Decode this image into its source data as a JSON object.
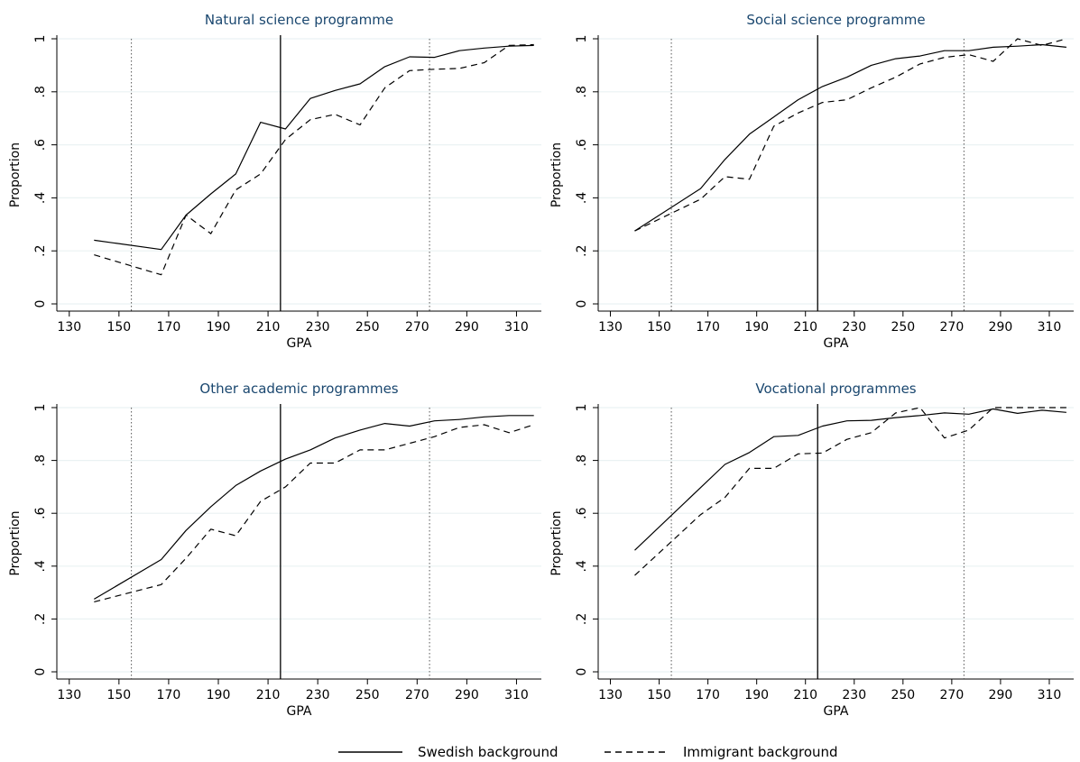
{
  "legend": {
    "swedish_label": "Swedish background",
    "immigrant_label": "Immigrant background"
  },
  "colors": {
    "title": "#1a476f",
    "line": "#000000",
    "grid": "#eaf2f3",
    "axis": "#000000"
  },
  "chart_data": [
    {
      "type": "line",
      "title": "Natural science programme",
      "xlabel": "GPA",
      "ylabel": "Proportion",
      "xlim": [
        125,
        320
      ],
      "ylim": [
        0,
        1
      ],
      "xticks": [
        130,
        150,
        170,
        190,
        210,
        230,
        250,
        270,
        290,
        310
      ],
      "yticks": [
        0,
        0.2,
        0.4,
        0.6,
        0.8,
        1
      ],
      "ytick_labels": [
        "0",
        ".2",
        ".4",
        ".6",
        ".8",
        "1"
      ],
      "grid": true,
      "vlines": {
        "solid": [
          215
        ],
        "dotted": [
          155,
          275
        ]
      },
      "series": [
        {
          "name": "Swedish background",
          "style": "solid",
          "points": [
            [
              140,
              0.24
            ],
            [
              167,
              0.205
            ],
            [
              177,
              0.335
            ],
            [
              187,
              0.415
            ],
            [
              197,
              0.49
            ],
            [
              207,
              0.685
            ],
            [
              217,
              0.66
            ],
            [
              227,
              0.775
            ],
            [
              237,
              0.805
            ],
            [
              247,
              0.83
            ],
            [
              257,
              0.895
            ],
            [
              267,
              0.932
            ],
            [
              277,
              0.93
            ],
            [
              287,
              0.955
            ],
            [
              297,
              0.965
            ],
            [
              307,
              0.972
            ],
            [
              317,
              0.975
            ]
          ]
        },
        {
          "name": "Immigrant background",
          "style": "dashed",
          "points": [
            [
              140,
              0.185
            ],
            [
              167,
              0.11
            ],
            [
              177,
              0.335
            ],
            [
              187,
              0.265
            ],
            [
              197,
              0.43
            ],
            [
              207,
              0.49
            ],
            [
              217,
              0.62
            ],
            [
              227,
              0.695
            ],
            [
              237,
              0.715
            ],
            [
              247,
              0.675
            ],
            [
              257,
              0.815
            ],
            [
              267,
              0.88
            ],
            [
              277,
              0.885
            ],
            [
              287,
              0.888
            ],
            [
              297,
              0.91
            ],
            [
              307,
              0.975
            ],
            [
              317,
              0.978
            ]
          ]
        }
      ]
    },
    {
      "type": "line",
      "title": "Social science programme",
      "xlabel": "GPA",
      "ylabel": "Proportion",
      "xlim": [
        125,
        320
      ],
      "ylim": [
        0,
        1
      ],
      "xticks": [
        130,
        150,
        170,
        190,
        210,
        230,
        250,
        270,
        290,
        310
      ],
      "yticks": [
        0,
        0.2,
        0.4,
        0.6,
        0.8,
        1
      ],
      "ytick_labels": [
        "0",
        ".2",
        ".4",
        ".6",
        ".8",
        "1"
      ],
      "grid": true,
      "vlines": {
        "solid": [
          215
        ],
        "dotted": [
          155,
          275
        ]
      },
      "series": [
        {
          "name": "Swedish background",
          "style": "solid",
          "points": [
            [
              140,
              0.275
            ],
            [
              167,
              0.435
            ],
            [
              177,
              0.545
            ],
            [
              187,
              0.64
            ],
            [
              197,
              0.705
            ],
            [
              207,
              0.77
            ],
            [
              217,
              0.82
            ],
            [
              227,
              0.855
            ],
            [
              237,
              0.9
            ],
            [
              247,
              0.925
            ],
            [
              257,
              0.935
            ],
            [
              267,
              0.955
            ],
            [
              277,
              0.955
            ],
            [
              287,
              0.968
            ],
            [
              297,
              0.972
            ],
            [
              307,
              0.978
            ],
            [
              317,
              0.968
            ]
          ]
        },
        {
          "name": "Immigrant background",
          "style": "dashed",
          "points": [
            [
              140,
              0.275
            ],
            [
              167,
              0.395
            ],
            [
              177,
              0.48
            ],
            [
              187,
              0.47
            ],
            [
              197,
              0.67
            ],
            [
              207,
              0.72
            ],
            [
              217,
              0.76
            ],
            [
              227,
              0.77
            ],
            [
              237,
              0.815
            ],
            [
              247,
              0.855
            ],
            [
              257,
              0.905
            ],
            [
              267,
              0.93
            ],
            [
              277,
              0.94
            ],
            [
              287,
              0.915
            ],
            [
              297,
              1.0
            ],
            [
              307,
              0.975
            ],
            [
              317,
              1.0
            ]
          ]
        }
      ]
    },
    {
      "type": "line",
      "title": "Other academic programmes",
      "xlabel": "GPA",
      "ylabel": "Proportion",
      "xlim": [
        125,
        320
      ],
      "ylim": [
        0,
        1
      ],
      "xticks": [
        130,
        150,
        170,
        190,
        210,
        230,
        250,
        270,
        290,
        310
      ],
      "yticks": [
        0,
        0.2,
        0.4,
        0.6,
        0.8,
        1
      ],
      "ytick_labels": [
        "0",
        ".2",
        ".4",
        ".6",
        ".8",
        "1"
      ],
      "grid": true,
      "vlines": {
        "solid": [
          215
        ],
        "dotted": [
          155,
          275
        ]
      },
      "series": [
        {
          "name": "Swedish background",
          "style": "solid",
          "points": [
            [
              140,
              0.275
            ],
            [
              167,
              0.425
            ],
            [
              177,
              0.535
            ],
            [
              187,
              0.625
            ],
            [
              197,
              0.705
            ],
            [
              207,
              0.76
            ],
            [
              217,
              0.805
            ],
            [
              227,
              0.84
            ],
            [
              237,
              0.885
            ],
            [
              247,
              0.915
            ],
            [
              257,
              0.94
            ],
            [
              267,
              0.93
            ],
            [
              277,
              0.95
            ],
            [
              287,
              0.955
            ],
            [
              297,
              0.965
            ],
            [
              307,
              0.97
            ],
            [
              317,
              0.97
            ]
          ]
        },
        {
          "name": "Immigrant background",
          "style": "dashed",
          "points": [
            [
              140,
              0.265
            ],
            [
              167,
              0.33
            ],
            [
              177,
              0.43
            ],
            [
              187,
              0.54
            ],
            [
              197,
              0.515
            ],
            [
              207,
              0.645
            ],
            [
              217,
              0.7
            ],
            [
              227,
              0.79
            ],
            [
              237,
              0.79
            ],
            [
              247,
              0.84
            ],
            [
              257,
              0.84
            ],
            [
              267,
              0.865
            ],
            [
              277,
              0.89
            ],
            [
              287,
              0.925
            ],
            [
              297,
              0.935
            ],
            [
              307,
              0.905
            ],
            [
              317,
              0.935
            ]
          ]
        }
      ]
    },
    {
      "type": "line",
      "title": "Vocational programmes",
      "xlabel": "GPA",
      "ylabel": "Proportion",
      "xlim": [
        125,
        320
      ],
      "ylim": [
        0,
        1
      ],
      "xticks": [
        130,
        150,
        170,
        190,
        210,
        230,
        250,
        270,
        290,
        310
      ],
      "yticks": [
        0,
        0.2,
        0.4,
        0.6,
        0.8,
        1
      ],
      "ytick_labels": [
        "0",
        ".2",
        ".4",
        ".6",
        ".8",
        "1"
      ],
      "grid": true,
      "vlines": {
        "solid": [
          215
        ],
        "dotted": [
          155,
          275
        ]
      },
      "series": [
        {
          "name": "Swedish background",
          "style": "solid",
          "points": [
            [
              140,
              0.46
            ],
            [
              177,
              0.785
            ],
            [
              187,
              0.83
            ],
            [
              197,
              0.89
            ],
            [
              207,
              0.895
            ],
            [
              217,
              0.93
            ],
            [
              227,
              0.95
            ],
            [
              237,
              0.952
            ],
            [
              247,
              0.962
            ],
            [
              257,
              0.97
            ],
            [
              267,
              0.98
            ],
            [
              277,
              0.975
            ],
            [
              287,
              0.995
            ],
            [
              297,
              0.978
            ],
            [
              307,
              0.99
            ],
            [
              317,
              0.982
            ]
          ]
        },
        {
          "name": "Immigrant background",
          "style": "dashed",
          "points": [
            [
              140,
              0.365
            ],
            [
              167,
              0.595
            ],
            [
              177,
              0.66
            ],
            [
              187,
              0.77
            ],
            [
              197,
              0.77
            ],
            [
              207,
              0.825
            ],
            [
              217,
              0.828
            ],
            [
              227,
              0.88
            ],
            [
              237,
              0.905
            ],
            [
              247,
              0.98
            ],
            [
              257,
              1.0
            ],
            [
              267,
              0.885
            ],
            [
              277,
              0.915
            ],
            [
              287,
              1.0
            ],
            [
              297,
              1.0
            ],
            [
              307,
              1.0
            ],
            [
              317,
              1.0
            ]
          ]
        }
      ]
    }
  ]
}
